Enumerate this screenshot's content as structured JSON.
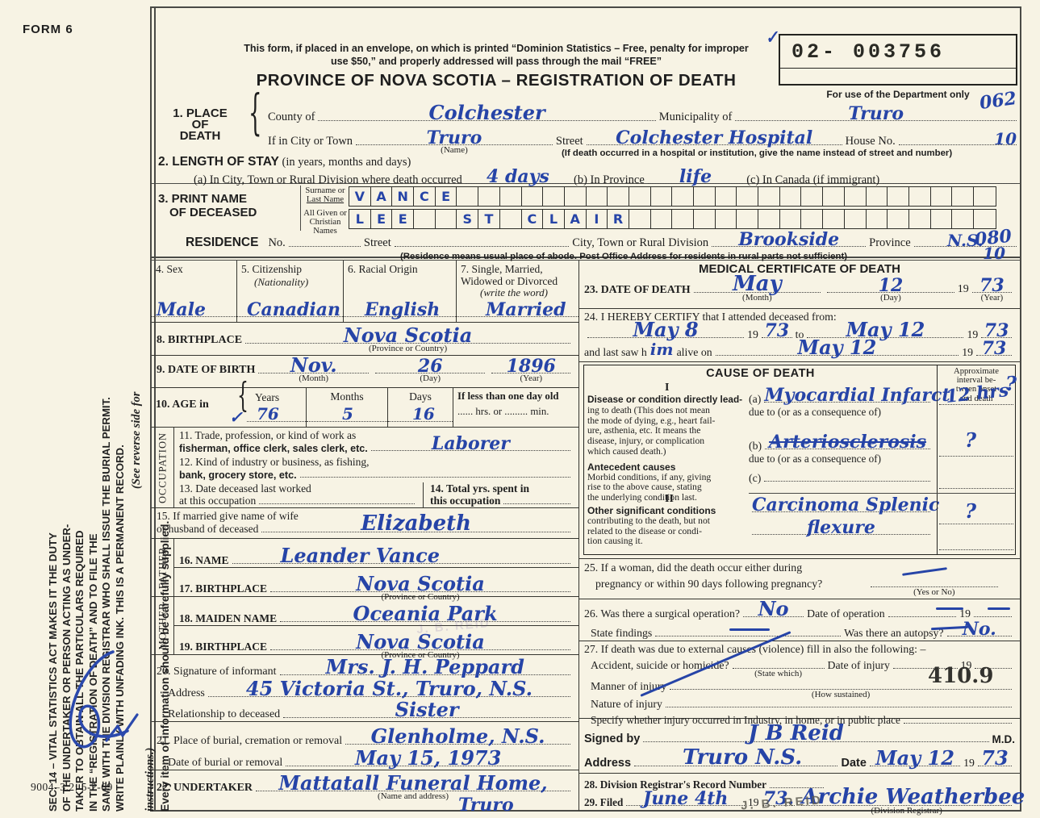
{
  "glyphs": {
    "brace": "{",
    "check": "✓",
    "dash": "–"
  },
  "header": {
    "form_no": "FORM 6",
    "mail_note_1": "This form, if placed in an envelope, on which is printed “Dominion Statistics – Free, penalty for improper",
    "mail_note_2": "use $50,” and properly addressed will pass through the mail “FREE”",
    "title": "PROVINCE OF NOVA SCOTIA – REGISTRATION OF DEATH",
    "serial": "02- 003756",
    "dept_caption": "For use of the Department only",
    "dept_code": "062"
  },
  "left_margin": {
    "statute_lines": [
      "SEC. 14 – VITAL STATISTICS ACT MAKES IT THE DUTY",
      "OF THE UNDERTAKER OR PERSON ACTING AS UNDER-",
      "TAKER TO OBTAIN ALL THE PARTICULARS REQUIRED",
      "IN THE “REGISTRATION OF DEATH” AND TO FILE THE",
      "SAME WITH THE DIVISION REGISTRAR WHO SHALL ISSUE THE BURIAL PERMIT.",
      "WRITE PLAINLY WITH UNFADING INK. THIS IS A PERMANENT RECORD."
    ],
    "see_reverse": "(See reverse side for instructions.)",
    "every_item": "Every item of information should be carefully supplied.",
    "doc_code": "9004–3.2: 5-2-69"
  },
  "s1": {
    "num_label1": "1. PLACE",
    "num_label2": "OF",
    "num_label3": "DEATH",
    "county_label": "County of",
    "county": "Colchester",
    "municipality_label": "Municipality of",
    "municipality": "Truro",
    "city_label": "If in City or Town",
    "city": "Truro",
    "name_caption": "(Name)",
    "street_label": "Street",
    "street": "Colchester Hospital",
    "house_label": "House No.",
    "house": "10",
    "hospital_note": "(If death occurred in a hospital or institution, give the name instead of street and number)"
  },
  "s2": {
    "heading": "2. LENGTH OF STAY",
    "heading_paren": "(in years, months and days)",
    "a_label": "(a) In City, Town or Rural Division where death occurred",
    "a_value": "4 days",
    "b_label": "(b) In Province",
    "b_value": "life",
    "c_label": "(c) In Canada (if immigrant)"
  },
  "s3": {
    "heading1": "3. PRINT NAME",
    "heading2": "OF DECEASED",
    "surname_label1": "Surname or",
    "surname_label2": "Last Name",
    "given_label1": "All Given or",
    "given_label2": "Christian Names",
    "surname_boxes": {
      "text": "VANCE",
      "count": 30
    },
    "given_boxes": {
      "text": "LEE  ST CLAIR",
      "count": 30
    }
  },
  "residence": {
    "label": "RESIDENCE",
    "no_label": "No.",
    "street_label": "Street",
    "city_label": "City, Town or Rural Division",
    "city": "Brookside",
    "province_label": "Province",
    "province": "N.S.",
    "code1": "080",
    "code2": "10",
    "note": "(Residence means usual place of abode. Post Office Address for residents in rural parts not sufficient)"
  },
  "s4": {
    "label": "4. Sex",
    "value": "Male"
  },
  "s5": {
    "label": "5. Citizenship",
    "sub": "(Nationality)",
    "value": "Canadian"
  },
  "s6": {
    "label": "6. Racial Origin",
    "value": "English"
  },
  "s7": {
    "label1": "7. Single, Married,",
    "label2": "Widowed or Divorced",
    "sub": "(write the word)",
    "value": "Married"
  },
  "s8": {
    "label": "8. BIRTHPLACE",
    "value": "Nova Scotia",
    "caption": "(Province or Country)"
  },
  "s9": {
    "label": "9. DATE OF BIRTH",
    "month": "Nov.",
    "month_cap": "(Month)",
    "day": "26",
    "day_cap": "(Day)",
    "year": "1896",
    "year_cap": "(Year)"
  },
  "s10": {
    "label": "10. AGE in",
    "years_label": "Years",
    "years": "76",
    "months_label": "Months",
    "months": "5",
    "days_label": "Days",
    "days": "16",
    "less_label": "If less than one day old",
    "hrs_label": "hrs. or",
    "min_label": "min."
  },
  "occupation_label": "OCCUPATION",
  "s11": {
    "label1": "11. Trade, profession, or kind of work as",
    "label2": "fisherman, office clerk, sales clerk, etc.",
    "value": "Laborer"
  },
  "s12": {
    "label1": "12. Kind of industry or business, as fishing,",
    "label2": "bank, grocery store, etc."
  },
  "s13": {
    "label1": "13. Date deceased last worked",
    "label2": "at this occupation"
  },
  "s14": {
    "label1": "14. Total yrs. spent in",
    "label2": "this occupation"
  },
  "s15": {
    "label1": "15. If married give name of wife",
    "label2": "or husband of deceased",
    "value": "Elizabeth"
  },
  "father_label": "FATHER",
  "s16": {
    "label": "16. NAME",
    "value": "Leander Vance"
  },
  "s17": {
    "label": "17. BIRTHPLACE",
    "value": "Nova Scotia",
    "caption": "(Province or Country)"
  },
  "mother_label": "MOTHER",
  "s18": {
    "label": "18. MAIDEN NAME",
    "value": "Oceania Park"
  },
  "s19": {
    "label": "19. BIRTHPLACE",
    "value": "Nova Scotia",
    "caption": "(Province or Country)"
  },
  "s20": {
    "label": "20. Signature of informant",
    "value": "Mrs. J. H. Peppard",
    "address_label": "Address",
    "address": "45 Victoria St., Truro, N.S.",
    "rel_label": "Relationship to deceased",
    "relationship": "Sister"
  },
  "s21": {
    "label": "21. Place of burial, cremation or removal",
    "value": "Glenholme, N.S.",
    "date_label": "Date of burial or removal",
    "date": "May 15, 1973"
  },
  "s22": {
    "label": "22. UNDERTAKER",
    "value": "Mattatall Funeral Home,",
    "caption": "(Name and address)",
    "town": "Truro"
  },
  "medical": {
    "heading": "MEDICAL CERTIFICATE OF DEATH",
    "s23": {
      "label": "23. DATE OF DEATH",
      "month": "May",
      "month_cap": "(Month)",
      "day": "12",
      "day_cap": "(Day)",
      "year_pre": "19",
      "year": "73",
      "year_cap": "(Year)"
    },
    "s24": {
      "label": "24. I HEREBY CERTIFY that I attended deceased from:",
      "from": "May 8",
      "from_pre": "19",
      "from_year": "73",
      "to_word": "to",
      "to": "May 12",
      "to_pre": "19",
      "to_year": "73",
      "saw_label1": "and last saw h",
      "saw_hw": "im",
      "saw_label2": "alive on",
      "saw": "May 12",
      "saw_pre": "19",
      "saw_year": "73"
    },
    "cause": {
      "title": "CAUSE OF DEATH",
      "interval_header": [
        "Approximate",
        "interval be-",
        "tween onset",
        "and death"
      ],
      "roman1": "I",
      "lead_lines": [
        "Disease or condition directly lead-",
        "ing to death (This does not mean",
        "the mode of dying, e.g., heart fail-",
        "ure, asthenia, etc. It means the",
        "disease, injury, or complication",
        "which caused death.)"
      ],
      "antecedent_title": "Antecedent causes",
      "antecedent_lines": [
        "Morbid conditions, if any, giving",
        "rise to the above cause, stating",
        "the underlying condition last."
      ],
      "a_label": "(a)",
      "a_value": "Myocardial Infarct",
      "a_interval": "12 hrs",
      "a_q": "?",
      "due1": "due to (or as a consequence of)",
      "b_label": "(b)",
      "b_value": "Arteriosclerosis",
      "b_interval": "?",
      "due2": "due to (or as a consequence of)",
      "c_label": "(c)",
      "roman2": "II",
      "other_title": "Other significant conditions",
      "other_lines": [
        "contributing to the death, but not",
        "related to the disease or condi-",
        "tion causing it."
      ],
      "other_value1": "Carcinoma Splenic",
      "other_value2": "flexure",
      "other_interval": "?"
    },
    "s25": {
      "label1": "25. If a woman, did the death occur either during",
      "label2": "pregnancy or within 90 days following pregnancy?",
      "caption": "(Yes or No)"
    },
    "s26": {
      "op_label": "26. Was there a surgical operation?",
      "op_value": "No",
      "date_label": "Date of operation",
      "year_pre": "19",
      "findings_label": "State findings",
      "autopsy_label": "Was there an autopsy?",
      "autopsy_value": "No."
    },
    "s27": {
      "label": "27. If death was due to external causes (violence) fill in also the following: –",
      "acc_label": "Accident, suicide or homicide?",
      "acc_cap": "(State which)",
      "injury_date_label": "Date of injury",
      "year_pre": "19",
      "manner_label": "Manner of injury",
      "manner_cap": "(How sustained)",
      "code": "410.9",
      "nature_label": "Nature of injury",
      "specify_label": "Specify whether injury occurred in Industry, in home, or in public place"
    },
    "signed": {
      "label": "Signed by",
      "signature": "J B Reid",
      "md": "M.D.",
      "address_label": "Address",
      "address": "Truro   N.S.",
      "date_label": "Date",
      "date": "May 12",
      "year_pre": "19",
      "year": "73"
    },
    "s28": {
      "label": "28. Division Registrar's Record Number"
    },
    "s29": {
      "label": "29. Filed",
      "filed_date": "June 4th",
      "year_pre": "19",
      "year": "73.",
      "registrar_sig": "Archie Weatherbee",
      "caption": "(Division Registrar)",
      "stamp": "J. B. REID"
    }
  }
}
